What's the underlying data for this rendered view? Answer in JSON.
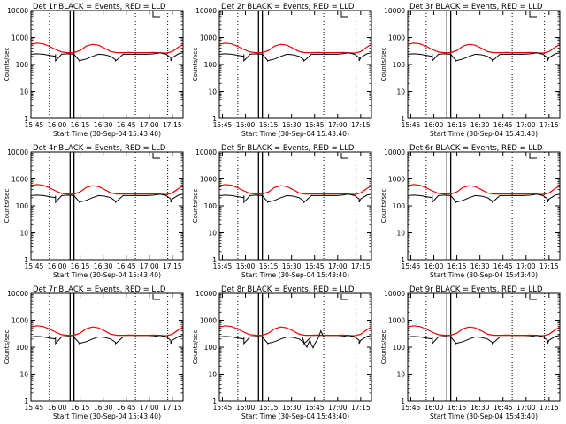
{
  "window_title": "",
  "chart_data": {
    "type": "line",
    "layout": "3x3 grid of panels",
    "y_scale": "log",
    "ylim": [
      1,
      10000
    ],
    "y_ticks": [
      1,
      10,
      100,
      1000,
      10000
    ],
    "y_tick_labels": [
      "1",
      "10",
      "100",
      "1000",
      "10000"
    ],
    "x_ticks": [
      "15:45",
      "16:00",
      "16:15",
      "16:30",
      "16:45",
      "17:00",
      "17:15"
    ],
    "x_tick_minutes": [
      0,
      15,
      30,
      45,
      60,
      75,
      90
    ],
    "x_range_minutes": [
      -2,
      97
    ],
    "ylabel": "Counts/sec",
    "xlabel": "Start Time (30-Sep-04 15:43:40)",
    "colors": {
      "events": "#000000",
      "lld": "#e60000",
      "frame": "#000000"
    },
    "vertical_lines": {
      "dotted_minutes": [
        10,
        66,
        87
      ],
      "solid_minutes": [
        23.5,
        26
      ]
    },
    "panels": [
      {
        "title": "Det 1r BLACK = Events, RED = LLD",
        "anomaly": false
      },
      {
        "title": "Det 2r BLACK = Events, RED = LLD",
        "anomaly": false
      },
      {
        "title": "Det 3r BLACK = Events, RED = LLD",
        "anomaly": false
      },
      {
        "title": "Det 4r BLACK = Events, RED = LLD",
        "anomaly": false
      },
      {
        "title": "Det 5r BLACK = Events, RED = LLD",
        "anomaly": false
      },
      {
        "title": "Det 6r BLACK = Events, RED = LLD",
        "anomaly": false
      },
      {
        "title": "Det 7r BLACK = Events, RED = LLD",
        "anomaly": false
      },
      {
        "title": "Det 8r BLACK = Events, RED = LLD",
        "anomaly": true
      },
      {
        "title": "Det 9r BLACK = Events, RED = LLD",
        "anomaly": false
      }
    ],
    "series": [
      {
        "name": "LLD",
        "color": "#e60000",
        "x": [
          -2,
          2,
          6,
          10,
          14,
          18,
          22,
          26,
          30,
          34,
          38,
          42,
          46,
          50,
          54,
          58,
          62,
          66,
          70,
          74,
          78,
          82,
          86,
          90,
          94,
          97
        ],
        "y": [
          560,
          620,
          580,
          470,
          360,
          290,
          275,
          275,
          330,
          480,
          560,
          520,
          400,
          300,
          275,
          275,
          280,
          275,
          275,
          275,
          280,
          270,
          265,
          300,
          440,
          560
        ]
      },
      {
        "name": "Events",
        "color": "#000000",
        "x": [
          -2,
          2,
          6,
          10,
          14,
          18,
          22,
          26,
          30,
          34,
          38,
          42,
          46,
          50,
          54,
          58,
          62,
          66,
          70,
          74,
          78,
          82,
          86,
          90,
          94,
          97
        ],
        "y": [
          240,
          250,
          240,
          220,
          200,
          240,
          250,
          240,
          140,
          160,
          200,
          240,
          230,
          200,
          150,
          240,
          240,
          240,
          240,
          240,
          250,
          270,
          240,
          180,
          250,
          270
        ]
      }
    ],
    "events_steps_minutes": [
      14,
      29.5,
      53,
      89
    ],
    "events_step_low": 135,
    "anomaly_series": {
      "name": "Events",
      "panel": "Det 8r BLACK = Events, RED = LLD",
      "x": [
        52,
        53,
        54,
        55,
        56,
        57,
        58,
        59,
        60,
        62,
        63,
        64,
        66
      ],
      "y": [
        240,
        160,
        120,
        100,
        140,
        180,
        120,
        95,
        130,
        200,
        260,
        400,
        240
      ]
    }
  }
}
